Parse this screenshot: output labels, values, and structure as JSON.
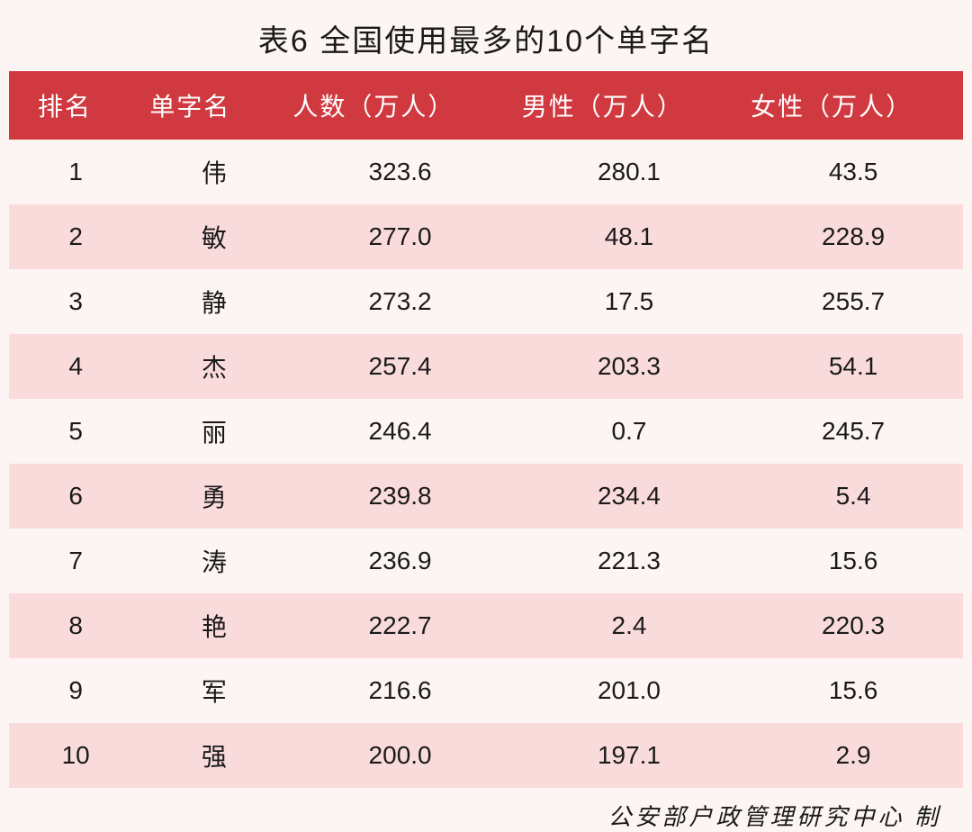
{
  "title": "表6 全国使用最多的10个单字名",
  "table": {
    "columns": [
      "排名",
      "单字名",
      "人数（万人）",
      "男性（万人）",
      "女性（万人）"
    ],
    "rows": [
      [
        "1",
        "伟",
        "323.6",
        "280.1",
        "43.5"
      ],
      [
        "2",
        "敏",
        "277.0",
        "48.1",
        "228.9"
      ],
      [
        "3",
        "静",
        "273.2",
        "17.5",
        "255.7"
      ],
      [
        "4",
        "杰",
        "257.4",
        "203.3",
        "54.1"
      ],
      [
        "5",
        "丽",
        "246.4",
        "0.7",
        "245.7"
      ],
      [
        "6",
        "勇",
        "239.8",
        "234.4",
        "5.4"
      ],
      [
        "7",
        "涛",
        "236.9",
        "221.3",
        "15.6"
      ],
      [
        "8",
        "艳",
        "222.7",
        "2.4",
        "220.3"
      ],
      [
        "9",
        "军",
        "216.6",
        "201.0",
        "15.6"
      ],
      [
        "10",
        "强",
        "200.0",
        "197.1",
        "2.9"
      ]
    ],
    "header_bg": "#d13940",
    "header_text_color": "#ffffff",
    "row_odd_bg": "#fdf5f3",
    "row_even_bg": "#fadbdc",
    "text_color": "#1a1a1a",
    "title_fontsize": 34,
    "header_fontsize": 28,
    "cell_fontsize": 28
  },
  "footer": "公安部户政管理研究中心 制"
}
